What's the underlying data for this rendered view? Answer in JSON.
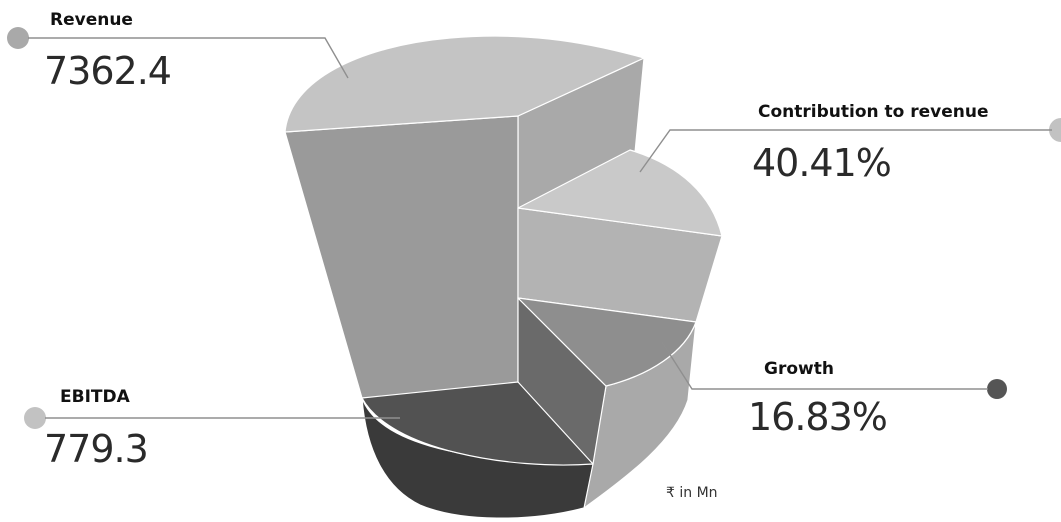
{
  "chart_data": {
    "type": "pie",
    "style": "3d-exploded-stepped",
    "unit_note": "₹ in Mn",
    "metrics": [
      {
        "key": "revenue",
        "label": "Revenue",
        "value": "7362.4",
        "dot_color": "#a9a9a9"
      },
      {
        "key": "contribution",
        "label": "Contribution to revenue",
        "value": "40.41%",
        "dot_color": "#c2c2c2"
      },
      {
        "key": "growth",
        "label": "Growth",
        "value": "16.83%",
        "dot_color": "#555555"
      },
      {
        "key": "ebitda",
        "label": "EBITDA",
        "value": "779.3",
        "dot_color": "#c2c2c2"
      }
    ],
    "slices": [
      {
        "key": "revenue",
        "top": "#c4c4c4",
        "side": "#9a9a9a",
        "wall": "#a9a9a9"
      },
      {
        "key": "contribution",
        "top": "#c9c9c9",
        "side": "#b3b3b3",
        "wall": "#ababab"
      },
      {
        "key": "growth",
        "top": "#8e8e8e",
        "side": "#a9a9a9",
        "wall": "#6a6a6a"
      },
      {
        "key": "ebitda",
        "top": "#525252",
        "side": "#3a3a3a",
        "wall": "#6a6a6a"
      }
    ]
  }
}
